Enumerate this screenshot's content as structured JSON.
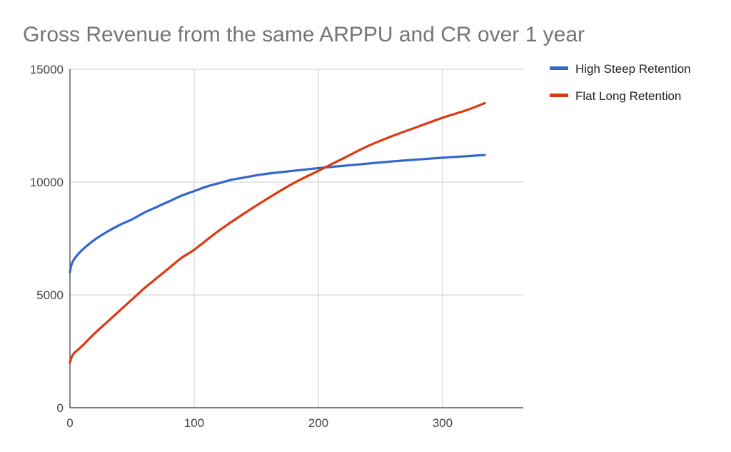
{
  "chart_data": {
    "type": "line",
    "title": "Gross Revenue from the same ARPPU and CR over 1 year",
    "xlabel": "",
    "ylabel": "",
    "xlim": [
      0,
      365
    ],
    "ylim": [
      0,
      15000
    ],
    "x_ticks": [
      0,
      100,
      200,
      300
    ],
    "y_ticks": [
      0,
      5000,
      10000,
      15000
    ],
    "grid": true,
    "legend_position": "right",
    "series": [
      {
        "name": "High Steep Retention",
        "color": "#3366cc",
        "x": [
          0,
          1,
          3,
          5,
          10,
          20,
          30,
          40,
          50,
          60,
          70,
          80,
          90,
          100,
          110,
          120,
          130,
          140,
          150,
          160,
          180,
          200,
          220,
          240,
          260,
          280,
          300,
          320,
          334
        ],
        "y": [
          6000,
          6300,
          6550,
          6700,
          7000,
          7450,
          7800,
          8100,
          8350,
          8650,
          8900,
          9150,
          9400,
          9600,
          9800,
          9950,
          10100,
          10200,
          10300,
          10380,
          10500,
          10620,
          10720,
          10820,
          10920,
          11000,
          11080,
          11150,
          11200
        ]
      },
      {
        "name": "Flat Long Retention",
        "color": "#dc3912",
        "x": [
          0,
          1,
          3,
          5,
          10,
          20,
          30,
          40,
          50,
          60,
          70,
          80,
          90,
          100,
          120,
          140,
          160,
          180,
          200,
          220,
          240,
          260,
          280,
          300,
          320,
          334
        ],
        "y": [
          2000,
          2200,
          2400,
          2500,
          2750,
          3300,
          3800,
          4300,
          4800,
          5300,
          5750,
          6200,
          6650,
          7000,
          7850,
          8600,
          9300,
          9950,
          10500,
          11050,
          11600,
          12050,
          12450,
          12850,
          13200,
          13500
        ]
      }
    ]
  }
}
